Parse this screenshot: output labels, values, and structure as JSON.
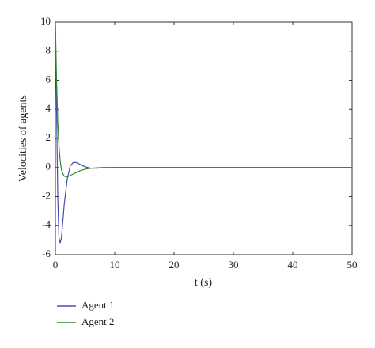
{
  "chart_data": {
    "type": "line",
    "x_label": "t (s)",
    "y_label": "Velocities of agents",
    "x": [
      0,
      0.2,
      0.4,
      0.6,
      0.8,
      1,
      1.2,
      1.5,
      2,
      2.5,
      3,
      3.5,
      4,
      5,
      6,
      7,
      8,
      10,
      15,
      20,
      30,
      40,
      50
    ],
    "series": [
      {
        "name": "Agent 1",
        "color": "#4b4bb0",
        "values": [
          10,
          4,
          -2,
          -4.8,
          -5.2,
          -4.9,
          -4,
          -2.5,
          -0.8,
          0.1,
          0.35,
          0.35,
          0.25,
          0.05,
          -0.05,
          -0.05,
          -0.02,
          0,
          0,
          0,
          0,
          0,
          0
        ]
      },
      {
        "name": "Agent 2",
        "color": "#2e8b2e",
        "values": [
          10,
          6,
          3.2,
          1.5,
          0.5,
          -0.1,
          -0.4,
          -0.6,
          -0.65,
          -0.55,
          -0.45,
          -0.35,
          -0.25,
          -0.12,
          -0.05,
          -0.02,
          0,
          0,
          0,
          0,
          0,
          0,
          0
        ]
      }
    ],
    "xlim": [
      0,
      50
    ],
    "xticks": [
      0,
      10,
      20,
      30,
      40,
      50
    ],
    "ylim": [
      -6,
      10
    ],
    "yticks": [
      -6,
      -4,
      -2,
      0,
      2,
      4,
      6,
      8,
      10
    ],
    "grid": false
  }
}
